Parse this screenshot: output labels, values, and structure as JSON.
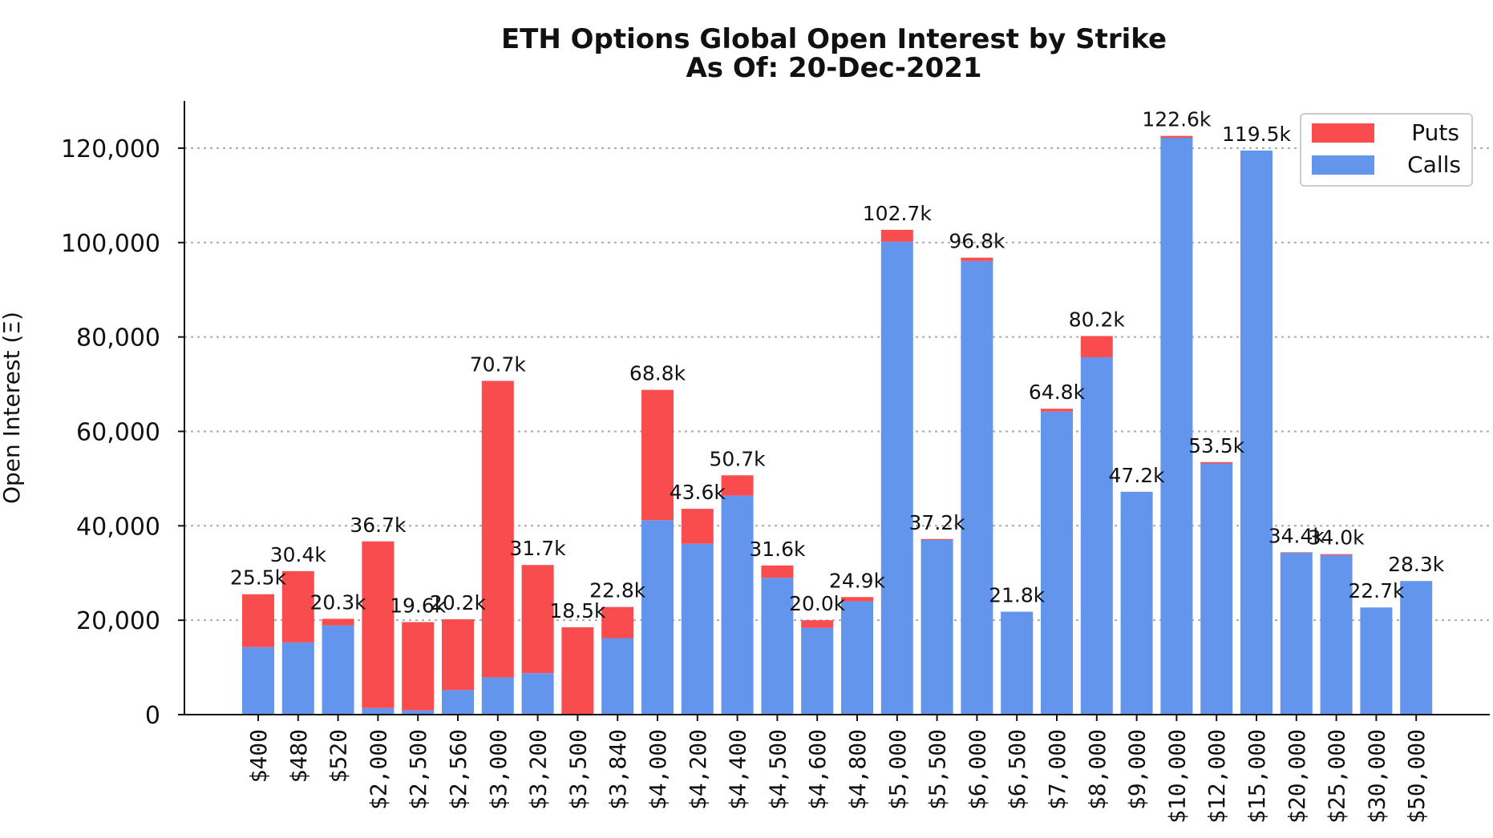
{
  "chart_data": {
    "type": "bar",
    "stacked": true,
    "title": "ETH Options Global Open Interest by Strike",
    "subtitle": "As Of: 20-Dec-2021",
    "xlabel": "",
    "ylabel": "Open Interest (Ξ)",
    "ylim": [
      0,
      130000
    ],
    "yticks": [
      0,
      20000,
      40000,
      60000,
      80000,
      100000,
      120000
    ],
    "ytick_labels": [
      "0",
      "20,000",
      "40,000",
      "60,000",
      "80,000",
      "100,000",
      "120,000"
    ],
    "grid": "horizontal dotted",
    "legend_position": "top-right",
    "categories": [
      "$400",
      "$480",
      "$520",
      "$2,000",
      "$2,500",
      "$2,560",
      "$3,000",
      "$3,200",
      "$3,500",
      "$3,840",
      "$4,000",
      "$4,200",
      "$4,400",
      "$4,500",
      "$4,600",
      "$4,800",
      "$5,000",
      "$5,500",
      "$6,000",
      "$6,500",
      "$7,000",
      "$8,000",
      "$9,000",
      "$10,000",
      "$12,000",
      "$15,000",
      "$20,000",
      "$25,000",
      "$30,000",
      "$50,000"
    ],
    "series": [
      {
        "name": "Calls",
        "color": "#6495ED",
        "values": [
          14300,
          15300,
          18900,
          1400,
          900,
          5200,
          7900,
          8800,
          0,
          16200,
          41200,
          36200,
          46400,
          29000,
          18400,
          24000,
          100200,
          37000,
          96100,
          21800,
          64200,
          75700,
          47200,
          122200,
          53200,
          119500,
          34300,
          33800,
          22700,
          28300
        ]
      },
      {
        "name": "Puts",
        "color": "#F94C4F",
        "values": [
          11200,
          15100,
          1400,
          35300,
          18700,
          15000,
          62800,
          22900,
          18500,
          6600,
          27600,
          7400,
          4300,
          2600,
          1600,
          900,
          2500,
          200,
          700,
          0,
          600,
          4500,
          0,
          400,
          300,
          0,
          100,
          200,
          0,
          0
        ]
      }
    ],
    "totals_labels": [
      "25.5k",
      "30.4k",
      "20.3k",
      "36.7k",
      "19.6k",
      "20.2k",
      "70.7k",
      "31.7k",
      "18.5k",
      "22.8k",
      "68.8k",
      "43.6k",
      "50.7k",
      "31.6k",
      "20.0k",
      "24.9k",
      "102.7k",
      "37.2k",
      "96.8k",
      "21.8k",
      "64.8k",
      "80.2k",
      "47.2k",
      "122.6k",
      "53.5k",
      "119.5k",
      "34.4k",
      "34.0k",
      "22.7k",
      "28.3k"
    ],
    "legend": [
      {
        "label": "Puts",
        "color": "#F94C4F"
      },
      {
        "label": "Calls",
        "color": "#6495ED"
      }
    ]
  }
}
